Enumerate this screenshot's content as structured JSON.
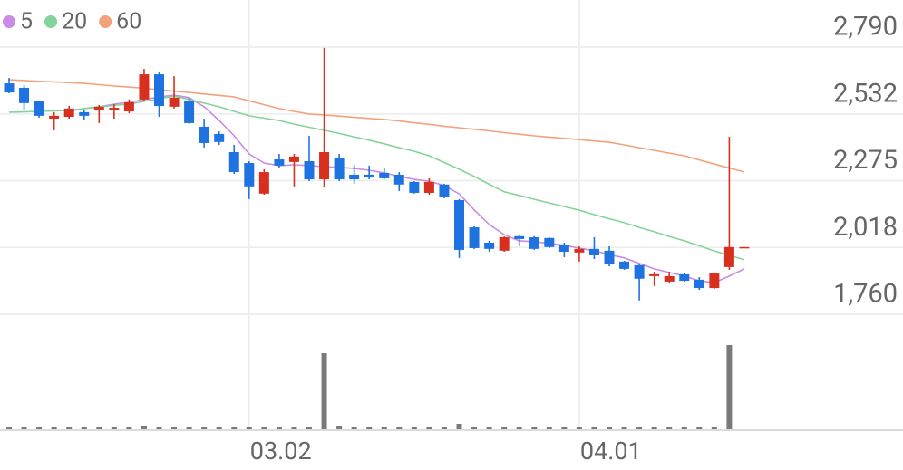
{
  "chart_data": {
    "type": "candlestick",
    "categories": [
      null,
      null,
      null,
      null,
      null,
      null,
      null,
      null,
      null,
      null,
      null,
      null,
      null,
      null,
      null,
      null,
      "03.02",
      null,
      null,
      null,
      null,
      null,
      null,
      null,
      null,
      null,
      null,
      null,
      null,
      null,
      null,
      null,
      null,
      null,
      null,
      null,
      null,
      null,
      "04.01",
      null,
      null,
      null,
      null,
      null,
      null,
      null,
      null,
      null,
      null,
      null
    ],
    "open": [
      2650,
      2633,
      2581,
      2514,
      2521,
      2539,
      2549,
      2549,
      2542,
      2588,
      2685,
      2560,
      2584,
      2483,
      2455,
      2385,
      2343,
      2225,
      2357,
      2347,
      2350,
      2280,
      2361,
      2298,
      2298,
      2305,
      2298,
      2270,
      2228,
      2260,
      2200,
      2095,
      2036,
      2005,
      2061,
      2057,
      2054,
      2026,
      1998,
      2012,
      2005,
      1963,
      1949,
      1907,
      1886,
      1914,
      1893,
      1861,
      1942,
      2017
    ],
    "high": [
      2671,
      2643,
      2584,
      2539,
      2563,
      2549,
      2567,
      2570,
      2588,
      2706,
      2692,
      2678,
      2595,
      2514,
      2465,
      2413,
      2350,
      2319,
      2378,
      2378,
      2448,
      2787,
      2378,
      2336,
      2333,
      2322,
      2308,
      2273,
      2284,
      2263,
      2204,
      2099,
      2043,
      2060,
      2068,
      2061,
      2057,
      2036,
      2022,
      2057,
      2022,
      1966,
      1952,
      1924,
      1924,
      1917,
      1903,
      1921,
      2444,
      2019
    ],
    "low": [
      2612,
      2549,
      2518,
      2469,
      2514,
      2507,
      2497,
      2514,
      2535,
      2581,
      2521,
      2553,
      2493,
      2403,
      2413,
      2301,
      2204,
      2221,
      2322,
      2253,
      2273,
      2249,
      2273,
      2263,
      2280,
      2280,
      2235,
      2225,
      2221,
      2207,
      1977,
      2011,
      2001,
      2001,
      2022,
      2008,
      2015,
      1980,
      1963,
      1973,
      1945,
      1931,
      1813,
      1869,
      1879,
      1886,
      1854,
      1858,
      1931,
      2017
    ],
    "close": [
      2615,
      2574,
      2525,
      2525,
      2553,
      2525,
      2560,
      2556,
      2577,
      2685,
      2563,
      2595,
      2497,
      2420,
      2424,
      2308,
      2253,
      2308,
      2333,
      2368,
      2280,
      2385,
      2280,
      2280,
      2287,
      2284,
      2260,
      2228,
      2270,
      2211,
      2008,
      2015,
      2012,
      2057,
      2050,
      2012,
      2019,
      2001,
      2012,
      1987,
      1952,
      1935,
      1897,
      1914,
      1907,
      1889,
      1861,
      1917,
      2019,
      2019
    ],
    "up_color": "#d8301f",
    "down_color": "#1f73e0",
    "volume": [
      2,
      2,
      2,
      2,
      2,
      2,
      2,
      2,
      2,
      4,
      3,
      3,
      2,
      2,
      2,
      2,
      2,
      2,
      2,
      2,
      2,
      84,
      4,
      2,
      2,
      2,
      2,
      2,
      2,
      2,
      6,
      2,
      2,
      2,
      2,
      2,
      2,
      2,
      2,
      2,
      2,
      2,
      2,
      2,
      2,
      2,
      2,
      2,
      93,
      0
    ],
    "volume_color": "#7a7a7a",
    "volume_ylim": [
      0,
      100
    ],
    "series": [
      {
        "name": "5",
        "color": "#c98be3",
        "values": [
          null,
          null,
          null,
          null,
          2542,
          2553,
          2560,
          2570,
          2577,
          2588,
          2598,
          2605,
          2595,
          2560,
          2507,
          2448,
          2378,
          2343,
          2333,
          2336,
          2333,
          2329,
          2326,
          2322,
          2315,
          2305,
          2291,
          2280,
          2273,
          2256,
          2224,
          2162,
          2106,
          2067,
          2043,
          2040,
          2033,
          2026,
          2015,
          2005,
          1990,
          1977,
          1956,
          1935,
          1921,
          1907,
          1889,
          1882,
          1907,
          1935
        ]
      },
      {
        "name": "20",
        "color": "#83d39a",
        "values": [
          2539,
          2540,
          2542,
          2544,
          2546,
          2553,
          2560,
          2565,
          2570,
          2581,
          2591,
          2601,
          2588,
          2574,
          2560,
          2542,
          2525,
          2516,
          2507,
          2493,
          2481,
          2469,
          2457,
          2444,
          2431,
          2417,
          2402,
          2388,
          2371,
          2345,
          2319,
          2291,
          2261,
          2232,
          2218,
          2203,
          2189,
          2175,
          2161,
          2144,
          2128,
          2113,
          2095,
          2078,
          2060,
          2043,
          2024,
          2004,
          1987,
          1970
        ]
      },
      {
        "name": "60",
        "color": "#f2a27c",
        "values": [
          2664,
          2661,
          2658,
          2656,
          2653,
          2650,
          2645,
          2640,
          2636,
          2631,
          2626,
          2620,
          2615,
          2609,
          2604,
          2598,
          2583,
          2568,
          2553,
          2542,
          2532,
          2528,
          2524,
          2519,
          2515,
          2511,
          2505,
          2498,
          2492,
          2485,
          2479,
          2473,
          2467,
          2460,
          2454,
          2448,
          2443,
          2438,
          2433,
          2428,
          2423,
          2413,
          2402,
          2392,
          2381,
          2371,
          2355,
          2339,
          2324,
          2308
        ]
      }
    ],
    "ylim": [
      1760,
      2790
    ],
    "yticks": [
      {
        "value": 1760,
        "label": "1,760"
      },
      {
        "value": 2018,
        "label": "2,018"
      },
      {
        "value": 2275,
        "label": "2,275"
      },
      {
        "value": 2532,
        "label": "2,532"
      },
      {
        "value": 2790,
        "label": "2,790"
      }
    ],
    "grid": true
  }
}
